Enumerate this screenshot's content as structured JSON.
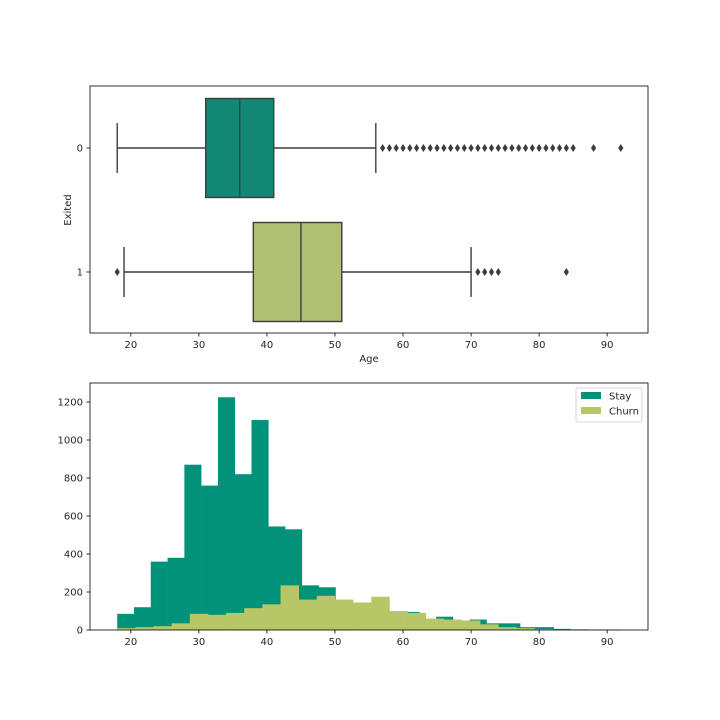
{
  "chart_data": [
    {
      "type": "box",
      "orientation": "horizontal",
      "xlabel": "Age",
      "ylabel": "Exited",
      "xlim": [
        14,
        96
      ],
      "xticks": [
        20,
        30,
        40,
        50,
        60,
        70,
        80,
        90
      ],
      "grid": false,
      "categories": [
        "0",
        "1"
      ],
      "series": [
        {
          "category": "0",
          "color": "#128774",
          "whisker_low": 18,
          "q1": 31,
          "median": 36,
          "q3": 41,
          "whisker_high": 56,
          "outliers": [
            57,
            58,
            59,
            60,
            61,
            62,
            63,
            64,
            65,
            66,
            67,
            68,
            69,
            70,
            71,
            72,
            73,
            74,
            75,
            76,
            77,
            78,
            79,
            80,
            81,
            82,
            83,
            84,
            85,
            88,
            92
          ]
        },
        {
          "category": "1",
          "color": "#b0bf73",
          "whisker_low": 19,
          "q1": 38,
          "median": 45,
          "q3": 51,
          "whisker_high": 70,
          "outliers": [
            18,
            71,
            72,
            73,
            74,
            84
          ]
        }
      ]
    },
    {
      "type": "histogram",
      "xlim": [
        14,
        96
      ],
      "ylim": [
        0,
        1300
      ],
      "xticks": [
        20,
        30,
        40,
        50,
        60,
        70,
        80,
        90
      ],
      "yticks": [
        0,
        200,
        400,
        600,
        800,
        1000,
        1200
      ],
      "grid": false,
      "legend_position": "top-right",
      "series": [
        {
          "name": "Stay",
          "color": "#029279",
          "bin_edges": [
            18,
            20.47,
            22.93,
            25.4,
            27.87,
            30.33,
            32.8,
            35.27,
            37.73,
            40.2,
            42.67,
            45.13,
            47.6,
            50.07,
            52.53,
            55,
            57.47,
            59.93,
            62.4,
            64.87,
            67.33,
            69.8,
            72.27,
            74.73,
            77.2,
            79.67,
            82.13,
            84.6,
            87.07,
            89.53,
            92
          ],
          "counts": [
            85,
            120,
            360,
            380,
            870,
            760,
            1225,
            820,
            1105,
            545,
            530,
            235,
            225,
            120,
            60,
            45,
            70,
            95,
            45,
            70,
            30,
            55,
            35,
            35,
            15,
            15,
            6,
            3,
            2,
            2
          ]
        },
        {
          "name": "Churn",
          "color": "#b7c667",
          "bin_edges": [
            18,
            20.67,
            23.33,
            26,
            28.67,
            31.33,
            34,
            36.67,
            39.33,
            42,
            44.67,
            47.33,
            50,
            52.67,
            55.33,
            58,
            60.67,
            63.33,
            66,
            68.67,
            71.33,
            74,
            76.67,
            79.33,
            82,
            84.67
          ],
          "counts": [
            10,
            15,
            20,
            35,
            85,
            80,
            90,
            115,
            135,
            235,
            160,
            180,
            160,
            145,
            175,
            100,
            90,
            60,
            55,
            50,
            30,
            15,
            10,
            5,
            3
          ]
        }
      ]
    }
  ]
}
